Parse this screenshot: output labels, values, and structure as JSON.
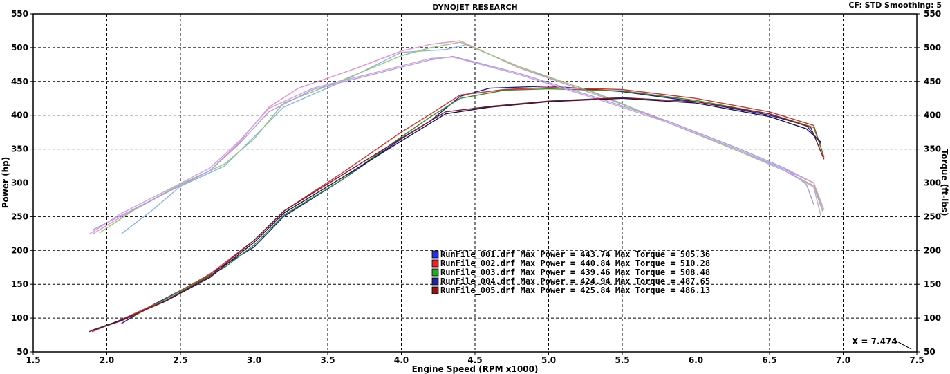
{
  "header": {
    "title": "DYNOJET RESEARCH",
    "settings": "CF: STD  Smoothing: 5"
  },
  "cursor": {
    "label": "X = 7.474"
  },
  "colors": {
    "background": "#ffffff",
    "grid": "#000000"
  },
  "chart_data": {
    "type": "line",
    "title": "DYNOJET RESEARCH",
    "xlabel": "Engine Speed (RPM x1000)",
    "ylabel": "Power (hp)",
    "y2label": "Torque (ft-lbs)",
    "xlim": [
      1.5,
      7.5
    ],
    "ylim": [
      50,
      550
    ],
    "y2lim": [
      50,
      550
    ],
    "xticks": [
      "1.5",
      "2.0",
      "2.5",
      "3.0",
      "3.5",
      "4.0",
      "4.5",
      "5.0",
      "5.5",
      "6.0",
      "6.5",
      "7.0",
      "7.5"
    ],
    "yticks": [
      "50",
      "100",
      "150",
      "200",
      "250",
      "300",
      "350",
      "400",
      "450",
      "500",
      "550"
    ],
    "grid": true,
    "legend_position": "center",
    "series": [
      {
        "name": "RunFile_001.drf",
        "color": "#2233dd",
        "line_color": "#1c1c9a",
        "torque_color": "#8ab0f0",
        "legend": "RunFile_001.drf Max Power = 443.74     Max Torque = 505.36",
        "power": [
          [
            2.1,
            92
          ],
          [
            2.3,
            118
          ],
          [
            2.6,
            152
          ],
          [
            3.0,
            205
          ],
          [
            3.2,
            250
          ],
          [
            3.6,
            305
          ],
          [
            4.0,
            365
          ],
          [
            4.2,
            392
          ],
          [
            4.4,
            428
          ],
          [
            4.6,
            440
          ],
          [
            5.0,
            443
          ],
          [
            5.5,
            435
          ],
          [
            6.0,
            420
          ],
          [
            6.5,
            400
          ],
          [
            6.75,
            385
          ],
          [
            6.85,
            358
          ]
        ],
        "torque": [
          [
            2.1,
            225
          ],
          [
            2.3,
            258
          ],
          [
            2.5,
            295
          ],
          [
            2.8,
            325
          ],
          [
            3.0,
            368
          ],
          [
            3.2,
            412
          ],
          [
            3.6,
            450
          ],
          [
            4.0,
            493
          ],
          [
            4.3,
            497
          ],
          [
            4.45,
            505
          ],
          [
            4.8,
            470
          ],
          [
            5.3,
            435
          ],
          [
            5.8,
            390
          ],
          [
            6.3,
            348
          ],
          [
            6.6,
            320
          ],
          [
            6.8,
            300
          ],
          [
            6.86,
            260
          ]
        ]
      },
      {
        "name": "RunFile_002.drf",
        "color": "#ee2222",
        "line_color": "#d63030",
        "torque_color": "#ea90c8",
        "legend": "RunFile_002.drf Max Power = 440.84     Max Torque = 510.28",
        "power": [
          [
            1.9,
            80
          ],
          [
            2.1,
            98
          ],
          [
            2.4,
            128
          ],
          [
            2.7,
            165
          ],
          [
            3.0,
            215
          ],
          [
            3.2,
            258
          ],
          [
            3.6,
            315
          ],
          [
            4.0,
            375
          ],
          [
            4.2,
            402
          ],
          [
            4.4,
            430
          ],
          [
            4.7,
            438
          ],
          [
            5.0,
            441
          ],
          [
            5.5,
            438
          ],
          [
            6.0,
            425
          ],
          [
            6.5,
            405
          ],
          [
            6.8,
            385
          ],
          [
            6.87,
            338
          ]
        ],
        "torque": [
          [
            1.9,
            224
          ],
          [
            2.1,
            250
          ],
          [
            2.4,
            285
          ],
          [
            2.7,
            318
          ],
          [
            2.9,
            360
          ],
          [
            3.1,
            412
          ],
          [
            3.3,
            440
          ],
          [
            3.7,
            470
          ],
          [
            4.0,
            495
          ],
          [
            4.2,
            505
          ],
          [
            4.4,
            510
          ],
          [
            4.8,
            470
          ],
          [
            5.3,
            432
          ],
          [
            5.8,
            392
          ],
          [
            6.3,
            350
          ],
          [
            6.6,
            322
          ],
          [
            6.8,
            300
          ],
          [
            6.87,
            260
          ]
        ]
      },
      {
        "name": "RunFile_003.drf",
        "color": "#22aa22",
        "line_color": "#3c8a2c",
        "torque_color": "#90c878",
        "legend": "RunFile_003.drf Max Power = 439.46     Max Torque = 508.48",
        "power": [
          [
            1.95,
            85
          ],
          [
            2.2,
            105
          ],
          [
            2.5,
            140
          ],
          [
            2.8,
            175
          ],
          [
            3.0,
            208
          ],
          [
            3.2,
            252
          ],
          [
            3.6,
            305
          ],
          [
            4.0,
            368
          ],
          [
            4.2,
            398
          ],
          [
            4.4,
            425
          ],
          [
            4.7,
            437
          ],
          [
            5.0,
            439
          ],
          [
            5.5,
            436
          ],
          [
            6.0,
            422
          ],
          [
            6.5,
            402
          ],
          [
            6.8,
            382
          ],
          [
            6.86,
            345
          ]
        ],
        "torque": [
          [
            1.95,
            226
          ],
          [
            2.2,
            262
          ],
          [
            2.5,
            298
          ],
          [
            2.8,
            328
          ],
          [
            3.0,
            365
          ],
          [
            3.2,
            418
          ],
          [
            3.6,
            452
          ],
          [
            4.0,
            488
          ],
          [
            4.2,
            500
          ],
          [
            4.4,
            508
          ],
          [
            4.8,
            472
          ],
          [
            5.3,
            434
          ],
          [
            5.8,
            390
          ],
          [
            6.3,
            346
          ],
          [
            6.6,
            318
          ],
          [
            6.8,
            296
          ],
          [
            6.86,
            258
          ]
        ]
      },
      {
        "name": "RunFile_004.drf",
        "color": "#222299",
        "line_color": "#14145a",
        "torque_color": "#a8a0e0",
        "legend": "RunFile_004.drf Max Power = 424.94     Max Torque = 487.65",
        "power": [
          [
            1.9,
            82
          ],
          [
            2.1,
            97
          ],
          [
            2.4,
            125
          ],
          [
            2.7,
            160
          ],
          [
            3.0,
            212
          ],
          [
            3.2,
            255
          ],
          [
            3.6,
            308
          ],
          [
            4.0,
            362
          ],
          [
            4.3,
            402
          ],
          [
            4.6,
            412
          ],
          [
            5.0,
            420
          ],
          [
            5.5,
            425
          ],
          [
            6.0,
            418
          ],
          [
            6.5,
            398
          ],
          [
            6.75,
            380
          ],
          [
            6.85,
            360
          ]
        ],
        "torque": [
          [
            1.9,
            230
          ],
          [
            2.1,
            252
          ],
          [
            2.4,
            285
          ],
          [
            2.7,
            318
          ],
          [
            2.9,
            358
          ],
          [
            3.1,
            405
          ],
          [
            3.4,
            438
          ],
          [
            3.8,
            460
          ],
          [
            4.2,
            482
          ],
          [
            4.35,
            487
          ],
          [
            4.8,
            462
          ],
          [
            5.3,
            428
          ],
          [
            5.8,
            392
          ],
          [
            6.3,
            350
          ],
          [
            6.6,
            322
          ],
          [
            6.75,
            298
          ],
          [
            6.8,
            268
          ]
        ]
      },
      {
        "name": "RunFile_005.drf",
        "color": "#991111",
        "line_color": "#7a1a2a",
        "torque_color": "#d0a0e0",
        "legend": "RunFile_005.drf Max Power = 425.84     Max Torque = 486.13",
        "power": [
          [
            1.88,
            80
          ],
          [
            2.1,
            96
          ],
          [
            2.4,
            126
          ],
          [
            2.7,
            162
          ],
          [
            3.0,
            215
          ],
          [
            3.2,
            258
          ],
          [
            3.6,
            312
          ],
          [
            4.0,
            366
          ],
          [
            4.3,
            405
          ],
          [
            4.6,
            413
          ],
          [
            5.0,
            421
          ],
          [
            5.5,
            426
          ],
          [
            6.0,
            420
          ],
          [
            6.5,
            402
          ],
          [
            6.78,
            382
          ],
          [
            6.87,
            335
          ]
        ],
        "torque": [
          [
            1.88,
            224
          ],
          [
            2.1,
            255
          ],
          [
            2.4,
            288
          ],
          [
            2.7,
            322
          ],
          [
            2.9,
            362
          ],
          [
            3.1,
            410
          ],
          [
            3.4,
            440
          ],
          [
            3.8,
            462
          ],
          [
            4.2,
            484
          ],
          [
            4.35,
            486
          ],
          [
            4.8,
            460
          ],
          [
            5.3,
            426
          ],
          [
            5.8,
            390
          ],
          [
            6.3,
            348
          ],
          [
            6.6,
            318
          ],
          [
            6.8,
            294
          ],
          [
            6.85,
            250
          ]
        ]
      }
    ]
  }
}
